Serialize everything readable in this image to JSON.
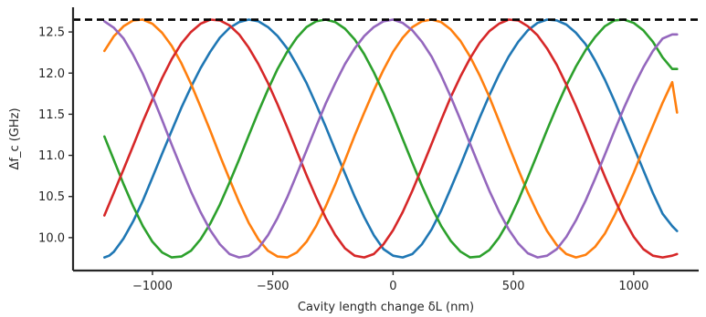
{
  "chart_data": {
    "type": "line",
    "xlabel": "Cavity length change δL (nm)",
    "ylabel": "Δf_c (GHz)",
    "xlim": [
      -1330,
      1270
    ],
    "ylim": [
      9.6,
      12.8
    ],
    "xticks": [
      -1000,
      -500,
      0,
      500,
      1000
    ],
    "xtick_labels": [
      "−1000",
      "−500",
      "0",
      "500",
      "1000"
    ],
    "yticks": [
      10.0,
      10.5,
      11.0,
      11.5,
      12.0,
      12.5
    ],
    "ytick_labels": [
      "10.0",
      "10.5",
      "11.0",
      "11.5",
      "12.0",
      "12.5"
    ],
    "grid": false,
    "legend": "none",
    "reference_line": {
      "y": 12.65,
      "style": "dashed",
      "color": "#000000"
    },
    "series": [
      {
        "color": "#1f77b4",
        "x": [
          -1200,
          -1180,
          -1160,
          -1120,
          -1080,
          -1040,
          -1000,
          -960,
          -920,
          -880,
          -840,
          -800,
          -760,
          -720,
          -680,
          -640,
          -600,
          -560,
          -520,
          -480,
          -440,
          -400,
          -360,
          -320,
          -280,
          -240,
          -200,
          -160,
          -120,
          -80,
          -40,
          0,
          40,
          80,
          120,
          160,
          200,
          240,
          280,
          320,
          360,
          400,
          440,
          480,
          520,
          560,
          600,
          640,
          680,
          720,
          760,
          800,
          840,
          880,
          920,
          960,
          1000,
          1040,
          1080,
          1120,
          1160,
          1180
        ],
        "y": [
          9.76,
          9.78,
          9.83,
          9.99,
          10.2,
          10.45,
          10.73,
          11.02,
          11.3,
          11.58,
          11.83,
          12.06,
          12.26,
          12.43,
          12.55,
          12.62,
          12.65,
          12.63,
          12.56,
          12.45,
          12.3,
          12.1,
          11.88,
          11.62,
          11.35,
          11.06,
          10.78,
          10.5,
          10.25,
          10.03,
          9.86,
          9.78,
          9.76,
          9.8,
          9.92,
          10.1,
          10.33,
          10.6,
          10.88,
          11.17,
          11.46,
          11.73,
          11.98,
          12.2,
          12.38,
          12.52,
          12.61,
          12.65,
          12.64,
          12.59,
          12.49,
          12.35,
          12.15,
          11.92,
          11.66,
          11.38,
          11.1,
          10.82,
          10.54,
          10.29,
          10.14,
          10.08
        ]
      },
      {
        "color": "#ff7f0e",
        "x": [
          -1200,
          -1160,
          -1120,
          -1080,
          -1040,
          -1000,
          -960,
          -920,
          -880,
          -840,
          -800,
          -760,
          -720,
          -680,
          -640,
          -600,
          -560,
          -520,
          -480,
          -440,
          -400,
          -360,
          -320,
          -280,
          -240,
          -200,
          -160,
          -120,
          -80,
          -40,
          0,
          40,
          80,
          120,
          160,
          200,
          240,
          280,
          320,
          360,
          400,
          440,
          480,
          520,
          560,
          600,
          640,
          680,
          720,
          760,
          800,
          840,
          880,
          920,
          960,
          1000,
          1040,
          1080,
          1120,
          1160,
          1180
        ],
        "y": [
          12.27,
          12.45,
          12.57,
          12.64,
          12.65,
          12.6,
          12.49,
          12.33,
          12.12,
          11.87,
          11.59,
          11.3,
          11.0,
          10.71,
          10.43,
          10.18,
          9.98,
          9.84,
          9.77,
          9.76,
          9.82,
          9.95,
          10.14,
          10.38,
          10.65,
          10.94,
          11.24,
          11.52,
          11.79,
          12.04,
          12.26,
          12.43,
          12.56,
          12.63,
          12.65,
          12.62,
          12.53,
          12.39,
          12.2,
          11.97,
          11.71,
          11.42,
          11.12,
          10.83,
          10.55,
          10.3,
          10.08,
          9.91,
          9.8,
          9.76,
          9.79,
          9.89,
          10.05,
          10.27,
          10.52,
          10.79,
          11.08,
          11.36,
          11.64,
          11.89,
          11.52
        ]
      },
      {
        "color": "#2ca02c",
        "x": [
          -1200,
          -1160,
          -1120,
          -1080,
          -1040,
          -1000,
          -960,
          -920,
          -880,
          -840,
          -800,
          -760,
          -720,
          -680,
          -640,
          -600,
          -560,
          -520,
          -480,
          -440,
          -400,
          -360,
          -320,
          -280,
          -240,
          -200,
          -160,
          -120,
          -80,
          -40,
          0,
          40,
          80,
          120,
          160,
          200,
          240,
          280,
          320,
          360,
          400,
          440,
          480,
          520,
          560,
          600,
          640,
          680,
          720,
          760,
          800,
          840,
          880,
          920,
          960,
          1000,
          1040,
          1080,
          1120,
          1160,
          1180
        ],
        "y": [
          11.23,
          10.94,
          10.65,
          10.38,
          10.14,
          9.95,
          9.82,
          9.76,
          9.77,
          9.84,
          9.98,
          10.17,
          10.4,
          10.67,
          10.95,
          11.24,
          11.53,
          11.8,
          12.05,
          12.26,
          12.43,
          12.56,
          12.63,
          12.65,
          12.62,
          12.54,
          12.41,
          12.23,
          12.01,
          11.76,
          11.49,
          11.2,
          10.91,
          10.63,
          10.37,
          10.14,
          9.96,
          9.83,
          9.76,
          9.77,
          9.85,
          10.0,
          10.2,
          10.45,
          10.73,
          11.02,
          11.31,
          11.59,
          11.85,
          12.08,
          12.28,
          12.44,
          12.57,
          12.64,
          12.65,
          12.61,
          12.52,
          12.38,
          12.19,
          12.05,
          12.05
        ]
      },
      {
        "color": "#d62728",
        "x": [
          -1200,
          -1160,
          -1120,
          -1080,
          -1040,
          -1000,
          -960,
          -920,
          -880,
          -840,
          -800,
          -760,
          -720,
          -680,
          -640,
          -600,
          -560,
          -520,
          -480,
          -440,
          -400,
          -360,
          -320,
          -280,
          -240,
          -200,
          -160,
          -120,
          -80,
          -40,
          0,
          40,
          80,
          120,
          160,
          200,
          240,
          280,
          320,
          360,
          400,
          440,
          480,
          520,
          560,
          600,
          640,
          680,
          720,
          760,
          800,
          840,
          880,
          920,
          960,
          1000,
          1040,
          1080,
          1120,
          1160,
          1180
        ],
        "y": [
          10.27,
          10.55,
          10.83,
          11.12,
          11.41,
          11.68,
          11.94,
          12.17,
          12.36,
          12.5,
          12.6,
          12.65,
          12.64,
          12.58,
          12.47,
          12.31,
          12.11,
          11.88,
          11.62,
          11.34,
          11.05,
          10.76,
          10.49,
          10.24,
          10.03,
          9.87,
          9.78,
          9.76,
          9.8,
          9.92,
          10.09,
          10.31,
          10.57,
          10.85,
          11.14,
          11.43,
          11.71,
          11.96,
          12.18,
          12.37,
          12.51,
          12.6,
          12.65,
          12.64,
          12.57,
          12.46,
          12.3,
          12.1,
          11.86,
          11.6,
          11.32,
          11.03,
          10.74,
          10.47,
          10.22,
          10.01,
          9.86,
          9.78,
          9.76,
          9.78,
          9.8
        ]
      },
      {
        "color": "#9467bd",
        "x": [
          -1200,
          -1160,
          -1120,
          -1080,
          -1040,
          -1000,
          -960,
          -920,
          -880,
          -840,
          -800,
          -760,
          -720,
          -680,
          -640,
          -600,
          -560,
          -520,
          -480,
          -440,
          -400,
          -360,
          -320,
          -280,
          -240,
          -200,
          -160,
          -120,
          -80,
          -40,
          0,
          40,
          80,
          120,
          160,
          200,
          240,
          280,
          320,
          360,
          400,
          440,
          480,
          520,
          560,
          600,
          640,
          680,
          720,
          760,
          800,
          840,
          880,
          920,
          960,
          1000,
          1040,
          1080,
          1120,
          1160,
          1180
        ],
        "y": [
          12.63,
          12.55,
          12.42,
          12.22,
          11.99,
          11.72,
          11.43,
          11.13,
          10.84,
          10.56,
          10.31,
          10.09,
          9.92,
          9.8,
          9.76,
          9.78,
          9.87,
          10.03,
          10.24,
          10.49,
          10.77,
          11.06,
          11.35,
          11.63,
          11.88,
          12.11,
          12.3,
          12.45,
          12.56,
          12.63,
          12.65,
          12.61,
          12.52,
          12.38,
          12.2,
          11.97,
          11.71,
          11.43,
          11.14,
          10.85,
          10.57,
          10.32,
          10.1,
          9.93,
          9.81,
          9.76,
          9.78,
          9.86,
          10.01,
          10.21,
          10.45,
          10.72,
          11.01,
          11.3,
          11.58,
          11.84,
          12.07,
          12.27,
          12.42,
          12.47,
          12.47
        ]
      }
    ]
  }
}
